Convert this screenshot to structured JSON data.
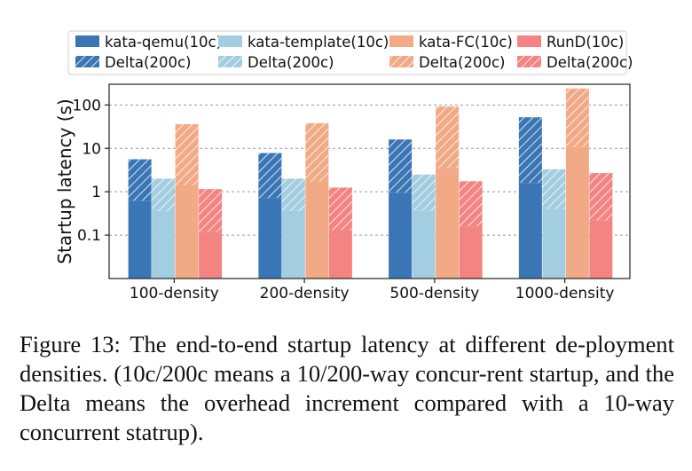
{
  "figure": {
    "caption": "Figure 13:   The end-to-end startup latency at different de-ployment densities. (10c/200c means a 10/200-way concur-rent startup, and the Delta means the overhead increment compared with a 10-way concurrent statrup)."
  },
  "chart_data": {
    "type": "bar",
    "stacked": true,
    "yscale": "log",
    "ylabel": "Startup latency (s)",
    "ylim": [
      0.01,
      300
    ],
    "yticks": [
      0.1,
      1,
      10,
      100
    ],
    "ytick_labels": [
      "0.1",
      "1",
      "10",
      "100"
    ],
    "grid": "horizontal-dashed",
    "legend_position": "top",
    "categories": [
      "100-density",
      "200-density",
      "500-density",
      "1000-density"
    ],
    "series": [
      {
        "name": "kata-qemu(10c)",
        "color": "#3a76b5",
        "hatch": false,
        "values": [
          0.62,
          0.72,
          0.95,
          1.6
        ]
      },
      {
        "name": "Delta(200c)",
        "color": "#3a76b5",
        "hatch": true,
        "values": [
          5.6,
          7.8,
          16.0,
          52.0
        ]
      },
      {
        "name": "kata-template(10c)",
        "color": "#a3cde0",
        "hatch": false,
        "values": [
          0.36,
          0.36,
          0.37,
          0.4
        ]
      },
      {
        "name": "Delta(200c)",
        "color": "#a3cde0",
        "hatch": true,
        "values": [
          2.0,
          2.0,
          2.5,
          3.3
        ]
      },
      {
        "name": "kata-FC(10c)",
        "color": "#f2a985",
        "hatch": false,
        "values": [
          1.4,
          1.7,
          3.5,
          11.0
        ]
      },
      {
        "name": "Delta(200c)",
        "color": "#f2a985",
        "hatch": true,
        "values": [
          36.0,
          38.0,
          92.0,
          240.0
        ]
      },
      {
        "name": "RunD(10c)",
        "color": "#f38482",
        "hatch": false,
        "values": [
          0.12,
          0.13,
          0.16,
          0.22
        ]
      },
      {
        "name": "Delta(200c)",
        "color": "#f38482",
        "hatch": true,
        "values": [
          1.15,
          1.25,
          1.75,
          2.7
        ]
      }
    ],
    "groups": [
      {
        "runtime": "kata-qemu",
        "color": "#3a76b5"
      },
      {
        "runtime": "kata-template",
        "color": "#a3cde0"
      },
      {
        "runtime": "kata-FC",
        "color": "#f2a985"
      },
      {
        "runtime": "RunD",
        "color": "#f38482"
      }
    ]
  }
}
